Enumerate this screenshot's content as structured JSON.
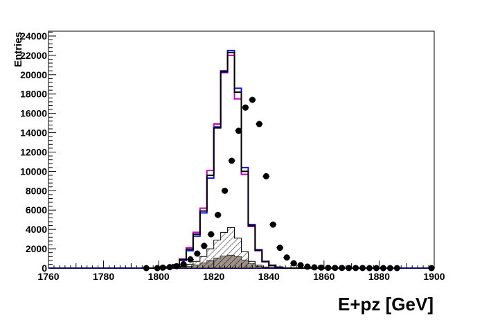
{
  "chart_data": {
    "type": "histogram",
    "title": "",
    "xlabel": "E+pz [GeV]",
    "ylabel": "Entries",
    "xlim": [
      1760,
      1900
    ],
    "ylim": [
      0,
      24500
    ],
    "x_ticks": [
      "1760",
      "1780",
      "1800",
      "1820",
      "1840",
      "1860",
      "1880",
      "1900"
    ],
    "y_ticks": [
      "0",
      "2000",
      "4000",
      "6000",
      "8000",
      "10000",
      "12000",
      "14000",
      "16000",
      "18000",
      "20000",
      "22000",
      "24000"
    ],
    "grid": false,
    "legend": false,
    "colors": {
      "frame": "#000000",
      "data_points": "#000000",
      "total_blue": "#1010e0",
      "total_magenta": "#c000c0",
      "component_black": "#000000",
      "hatched": "#000000",
      "filled_gray": "#9e9188"
    },
    "bins": {
      "edges_start": 1795,
      "width": 2.5,
      "count": 26
    },
    "series": [
      {
        "style": "step",
        "color": "#1010e0",
        "values": [
          0,
          0,
          0,
          100,
          300,
          800,
          1800,
          3300,
          5700,
          9300,
          14600,
          20400,
          22500,
          18600,
          10400,
          4500,
          1900,
          700,
          300,
          100,
          0,
          0,
          0,
          0,
          0,
          0
        ]
      },
      {
        "style": "step",
        "color": "#c000c0",
        "values": [
          0,
          0,
          0,
          120,
          350,
          950,
          2100,
          3700,
          6200,
          10100,
          14900,
          20200,
          22000,
          17500,
          9700,
          4300,
          1800,
          650,
          250,
          80,
          0,
          0,
          0,
          0,
          0,
          0
        ]
      },
      {
        "style": "step",
        "color": "#000000",
        "values": [
          0,
          0,
          0,
          110,
          320,
          880,
          1950,
          3500,
          5900,
          9600,
          14500,
          20300,
          22300,
          18200,
          10000,
          4400,
          1850,
          680,
          280,
          90,
          0,
          0,
          0,
          0,
          0,
          0
        ]
      },
      {
        "style": "hatched",
        "color": "#000000",
        "values": [
          0,
          0,
          0,
          50,
          100,
          200,
          400,
          700,
          1200,
          2000,
          2900,
          3700,
          4200,
          3100,
          1700,
          700,
          300,
          120,
          50,
          0,
          0,
          0,
          0,
          0,
          0,
          0
        ]
      },
      {
        "style": "filled",
        "color": "#9e9188",
        "values": [
          0,
          0,
          0,
          20,
          50,
          100,
          200,
          350,
          550,
          800,
          1050,
          1250,
          1350,
          1200,
          850,
          450,
          200,
          80,
          30,
          0,
          0,
          0,
          0,
          0,
          0,
          0
        ]
      },
      {
        "style": "points",
        "color": "#000000",
        "x": [
          1795.5,
          1799.5,
          1801.5,
          1804,
          1806.5,
          1809,
          1811.5,
          1814,
          1816.5,
          1819,
          1821.5,
          1824,
          1826.5,
          1829,
          1831.5,
          1834,
          1836.5,
          1839,
          1841.5,
          1844,
          1846.5,
          1849,
          1851.5,
          1854,
          1856.5,
          1859,
          1861.5,
          1864,
          1866.5,
          1869,
          1871.5,
          1874,
          1876.5,
          1879,
          1881.5,
          1884,
          1886.5,
          1899
        ],
        "y": [
          0,
          0,
          50,
          100,
          200,
          400,
          900,
          1500,
          2300,
          3500,
          5500,
          8000,
          11100,
          14200,
          16600,
          17400,
          14900,
          9500,
          4500,
          2100,
          1100,
          500,
          300,
          150,
          80,
          50,
          30,
          20,
          20,
          10,
          10,
          10,
          0,
          0,
          0,
          0,
          0,
          0
        ]
      }
    ]
  }
}
